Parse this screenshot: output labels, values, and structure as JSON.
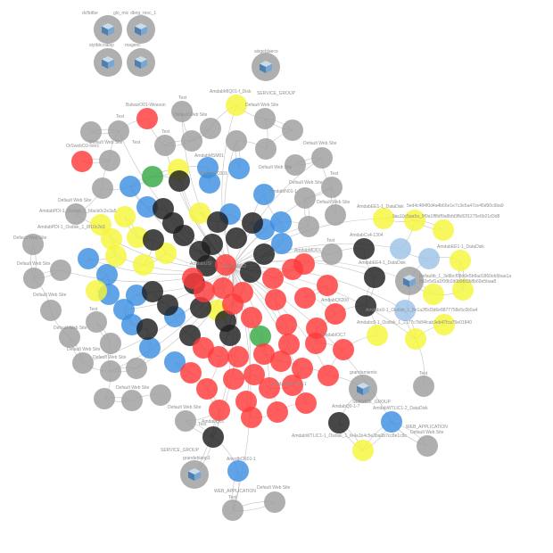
{
  "graph": {
    "colors": {
      "gray": "#9e9e9e",
      "black": "#1e1e1e",
      "red": "#ff3b3b",
      "blue": "#3d8fe0",
      "yellow": "#f5f53a",
      "green": "#37a845",
      "lightblue": "#9cc3e8",
      "edge": "#b9b9b9"
    },
    "labels": {
      "tl_a": "dcfbdbe",
      "tl_b": "glo_mic",
      "tl_c": "dbng_reoc_1",
      "tl_d": "stytbbcnaisp",
      "tl_e": "magenc",
      "top_server": "aisgeblaeco",
      "top_group": "SERVICE_GROUP",
      "ir_top": "AmdabMIQ01-f_Disk",
      "bulwark": "BulwarO01-Weavon",
      "orsweb": "OrSwebO3-Iverc",
      "dws1": "Default Web Site",
      "dws2": "Default Web Site",
      "dws3": "Default Web Site",
      "dws4": "Default Web Site",
      "dws5": "Default Web Site",
      "dws6": "Default Web Site",
      "dws7": "Default Web Site",
      "dws8": "Default Web Site",
      "dws9": "Default Web Site",
      "dws10": "Default Web Site",
      "dws11": "Default Web Site",
      "dws12": "Default Web Site",
      "dws13": "Default Web Site",
      "dws14": "Default Web Site",
      "dws15": "Default Web Site",
      "dws16": "Default Web Site",
      "test1": "Test",
      "test2": "Test",
      "test3": "Test",
      "test4": "Test",
      "test5": "Test",
      "test6": "Test",
      "test7": "Test",
      "test8": "Test",
      "right_disk": "AmdabEE1-1_DataDisk",
      "right_hash1": "5ed4c484f0d4a4b66e1e7c3e5a47ce46d90c6ba9",
      "right_hash2": "9ec10c5aa5a_9f9a1ff8df9a8bfd3fb82f1275e6b21d3d8",
      "right_disk2": "AmdabEE1-1_DataDisk",
      "right_ann": "AmdabCs4-1304",
      "right_hash3": "Defaultb_1_3e8bcf08d0e5b8ad1860eb5baa1a",
      "right_hash4": "8d2e5d1a1f08b2d0b96f3b8b60e5baa8",
      "right_disk3": "AmdabEE4-1_DataDisk",
      "right_hash5": "Amdabc0-1_Osdisk_1_2177c7b84fcab3eb47fca75e01840",
      "right_hash6": "Amdabc0-1_Osdisk_1_8e1a2f5d3d6e8877758e5c0b5a4",
      "bottom_server": "grandamiento",
      "bottom_group": "SERVICE_GROUP",
      "bottom_app": "WEB_APPLICATION",
      "bottom_disk": "AmdabWTLIC1-1_Osdisk_1_fe4a1b4c5e3ba0b7cc8e1c8c",
      "bottom_web": "AmdabWTLIC1-2_DataDisk",
      "bottom_web2": "Default Web Site",
      "bl_server": "grandeblaop3",
      "bl_group": "SERVICE_GROUP",
      "bl_node": "AmcdbCR01-1",
      "bl_web": "Default Web Site",
      "bl_app": "WEB_APPLICATION",
      "bl_test": "Test",
      "bottom_test": "Test",
      "left_disk1": "AmdabPDI-1_Osdisk_1_bfacb0c2e3a5",
      "left_disk2": "AmdabPDI-1_Osdisk_1_8f10c2e3",
      "center_a": "AmdabMSM01",
      "center_b": "AmdabFC001",
      "center_c": "AmdabIN01-1",
      "center_d": "AmdabMS2",
      "center_e": "AmdabMOD1",
      "center_f": "AmdabQ0200",
      "center_g": "AmdabIOC7",
      "center_h": "AmdabQ0-1-7",
      "center_i": "AmdabWTLIC1-1",
      "center_j": "AmdabUSI",
      "center_k": "AmdabQ01"
    }
  }
}
